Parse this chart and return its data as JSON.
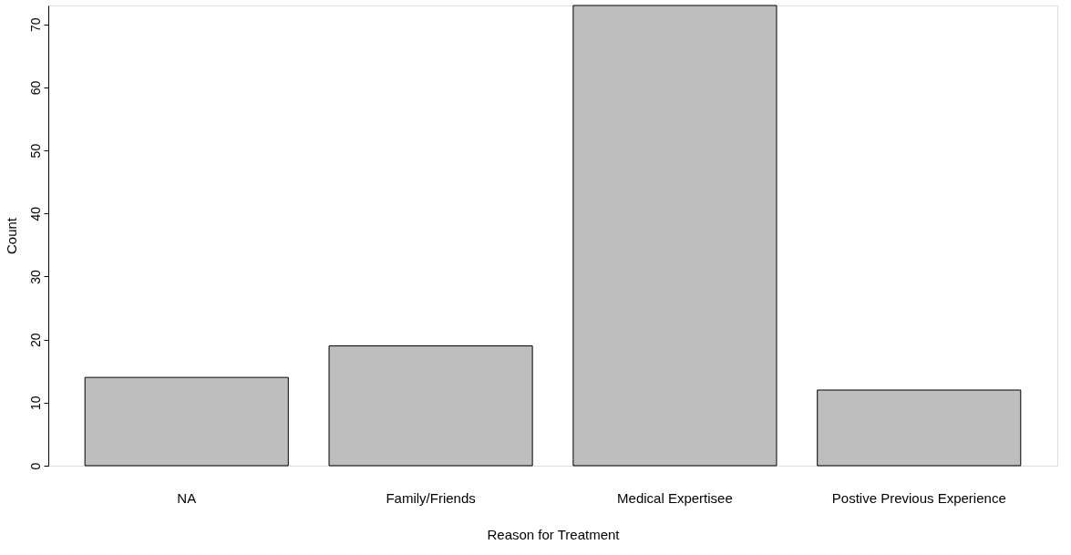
{
  "chart_data": {
    "type": "bar",
    "xlabel": "Reason for Treatment",
    "ylabel": "Count",
    "categories": [
      "NA",
      "Family/Friends",
      "Medical Expertisee",
      "Postive Previous Experience"
    ],
    "values": [
      14,
      19,
      73,
      12
    ],
    "color": "#bebebe",
    "ylim": [
      0,
      73
    ],
    "yticks": [
      0,
      10,
      20,
      30,
      40,
      50,
      60,
      70
    ],
    "grid": false
  }
}
